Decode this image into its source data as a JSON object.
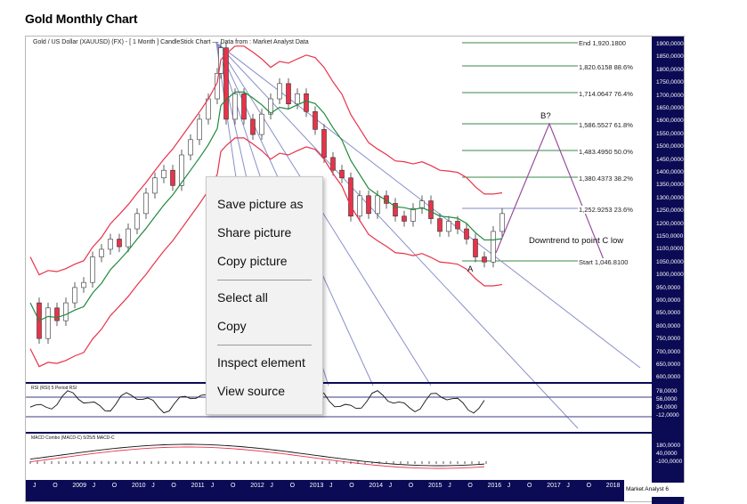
{
  "page": {
    "title": "Gold Monthly Chart"
  },
  "chart": {
    "header": "Gold / US Dollar (XAUUSD) (FX) - [ 1 Month ] CandleStick Chart — Data from : Market Analyst Data",
    "fib_levels": [
      "End 1,920.1800",
      "1,820.6158 88.6%",
      "1,714.0647 76.4%",
      "1,586.5527 61.8%",
      "1,483.4950 50.0%",
      "1,380.4373 38.2%",
      "1,252.9253 23.6%",
      "Start 1,046.8100"
    ],
    "annotations": {
      "b_label": "B?",
      "a_label": "A",
      "downtrend": "Downtrend to point C low"
    },
    "y_ticks": [
      "1900,0000",
      "1850,0000",
      "1800,0000",
      "1750,0000",
      "1700,0000",
      "1650,0000",
      "1600,0000",
      "1550,0000",
      "1500,0000",
      "1450,0000",
      "1400,0000",
      "1350,0000",
      "1300,0000",
      "1250,0000",
      "1200,0000",
      "1150,0000",
      "1100,0000",
      "1050,0000",
      "1000,0000",
      "950,0000",
      "900,0000",
      "850,0000",
      "800,0000",
      "750,0000",
      "700,0000",
      "650,0000",
      "600,0000"
    ],
    "rsi": {
      "label": "RSI (RSI) 5 Period RSI",
      "ticks": [
        "78,0000",
        "56,0000",
        "34,0000",
        "-12,0000"
      ]
    },
    "macd": {
      "label": "MACD Combo (MACD-C) 5/25/5 MACD-C",
      "ticks": [
        "180,0000",
        "40,0000",
        "-100,0000"
      ]
    },
    "x_ticks": [
      "J",
      "O",
      "2009",
      "J",
      "O",
      "2010",
      "J",
      "O",
      "2011",
      "J",
      "O",
      "2012",
      "J",
      "O",
      "2013",
      "J",
      "O",
      "2014",
      "J",
      "O",
      "2015",
      "J",
      "O",
      "2016",
      "J",
      "O",
      "2017",
      "J",
      "O",
      "2018"
    ],
    "brand": "Market Analyst 6"
  },
  "context_menu": {
    "items": [
      "Save picture as",
      "Share picture",
      "Copy picture",
      "Select all",
      "Copy",
      "Inspect element",
      "View source"
    ]
  },
  "colors": {
    "axis_bg": "#0a0a55",
    "bollinger": "#e8334a",
    "ma": "#1f8a3c",
    "fib": "#3a8a4a",
    "fan": "#8890c8",
    "projection": "#9a4fa0"
  }
}
